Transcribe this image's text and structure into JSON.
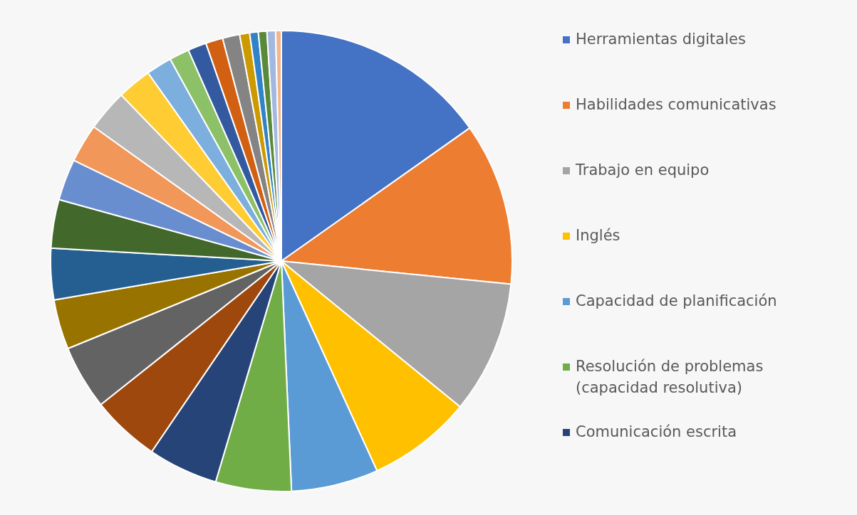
{
  "chart_data": {
    "type": "pie",
    "categories": [
      "Herramientas digitales",
      "Habilidades comunicativas",
      "Trabajo en equipo",
      "Inglés",
      "Capacidad de planificación",
      "Resolución de problemas (capacidad resolutiva)",
      "Comunicación escrita",
      null,
      null,
      null,
      null,
      null,
      null,
      null,
      null,
      null,
      null,
      null,
      null,
      null,
      null,
      null,
      null,
      null,
      null,
      null
    ],
    "values": [
      15.2,
      11.4,
      9.3,
      7.3,
      6.1,
      5.3,
      4.9,
      4.8,
      4.5,
      3.5,
      3.6,
      3.4,
      2.9,
      2.7,
      2.9,
      2.4,
      1.8,
      1.4,
      1.3,
      1.2,
      1.2,
      0.7,
      0.6,
      0.6,
      0.6,
      0.4
    ],
    "colors": [
      "#4472c4",
      "#ed7d31",
      "#a5a5a5",
      "#ffc000",
      "#5b9bd5",
      "#70ad47",
      "#264478",
      "#9e480e",
      "#636363",
      "#997300",
      "#255e91",
      "#43682b",
      "#698ed0",
      "#f1975a",
      "#b7b7b7",
      "#ffcd33",
      "#7cafdd",
      "#8cc168",
      "#335aa1",
      "#d26012",
      "#848484",
      "#cc9a00",
      "#3282c8",
      "#5a8a39",
      "#a2b8e1",
      "#f5b58a"
    ],
    "legend": "right"
  }
}
